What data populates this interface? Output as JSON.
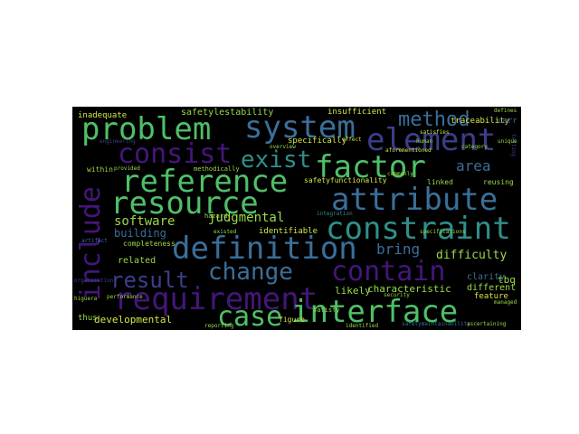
{
  "palette": {
    "background": "#000000",
    "purple": "#44167a",
    "indigo": "#3b3f8a",
    "blue": "#3a6f9a",
    "teal": "#2f8f8a",
    "green": "#4fbf68",
    "lime": "#9bd94a",
    "yellow": "#d6e64a"
  },
  "words": {
    "problem": "problem",
    "system": "system",
    "element": "element",
    "consist": "consist",
    "exist": "exist",
    "factor": "factor",
    "method": "method",
    "reference": "reference",
    "resource": "resource",
    "attribute": "attribute",
    "include": "include",
    "constraint": "constraint",
    "definition": "definition",
    "software": "software",
    "judgmental": "judgmental",
    "bring": "bring",
    "area": "area",
    "difficulty": "difficulty",
    "change": "change",
    "contain": "contain",
    "result": "result",
    "requirement": "requirement",
    "case": "case",
    "interface": "interface",
    "developmental": "developmental",
    "building": "building",
    "completeness": "completeness",
    "related": "related",
    "characteristic": "characteristic",
    "likely": "likely",
    "tbq": "tbq",
    "different": "different",
    "feature": "feature",
    "figure": "figure",
    "safetylestability": "safetylestability",
    "insufficient": "insufficient",
    "traceability": "traceability",
    "inadequate": "inadequate",
    "specifically": "specifically",
    "aforementioned": "aforementioned",
    "safetyfunctionality": "safetyfunctionality",
    "identifiable": "identifiable",
    "linked": "linked",
    "reusing": "reusing",
    "within": "within",
    "methodically": "methodically",
    "provided": "provided",
    "hazard": "hazard",
    "existed": "existed",
    "thus": "thus",
    "satisfy": "satisfy",
    "clarity": "clarity",
    "effect": "effect",
    "integration": "integration",
    "safetymaintainability": "safetymaintainability",
    "security": "security",
    "carr": "carr",
    "testing": "testing",
    "defines": "defines",
    "commonly": "commonly",
    "engineering": "engineering",
    "artifact": "artifact",
    "performance": "performance",
    "human": "human",
    "overview": "overview",
    "category": "category",
    "specifications": "specifications",
    "organization": "organization",
    "figure2": "higuera",
    "managed": "managed",
    "identified": "identified",
    "ascertaining": "ascertaining",
    "reporting": "reporting",
    "satisfies": "satisfies",
    "unique": "unique"
  }
}
